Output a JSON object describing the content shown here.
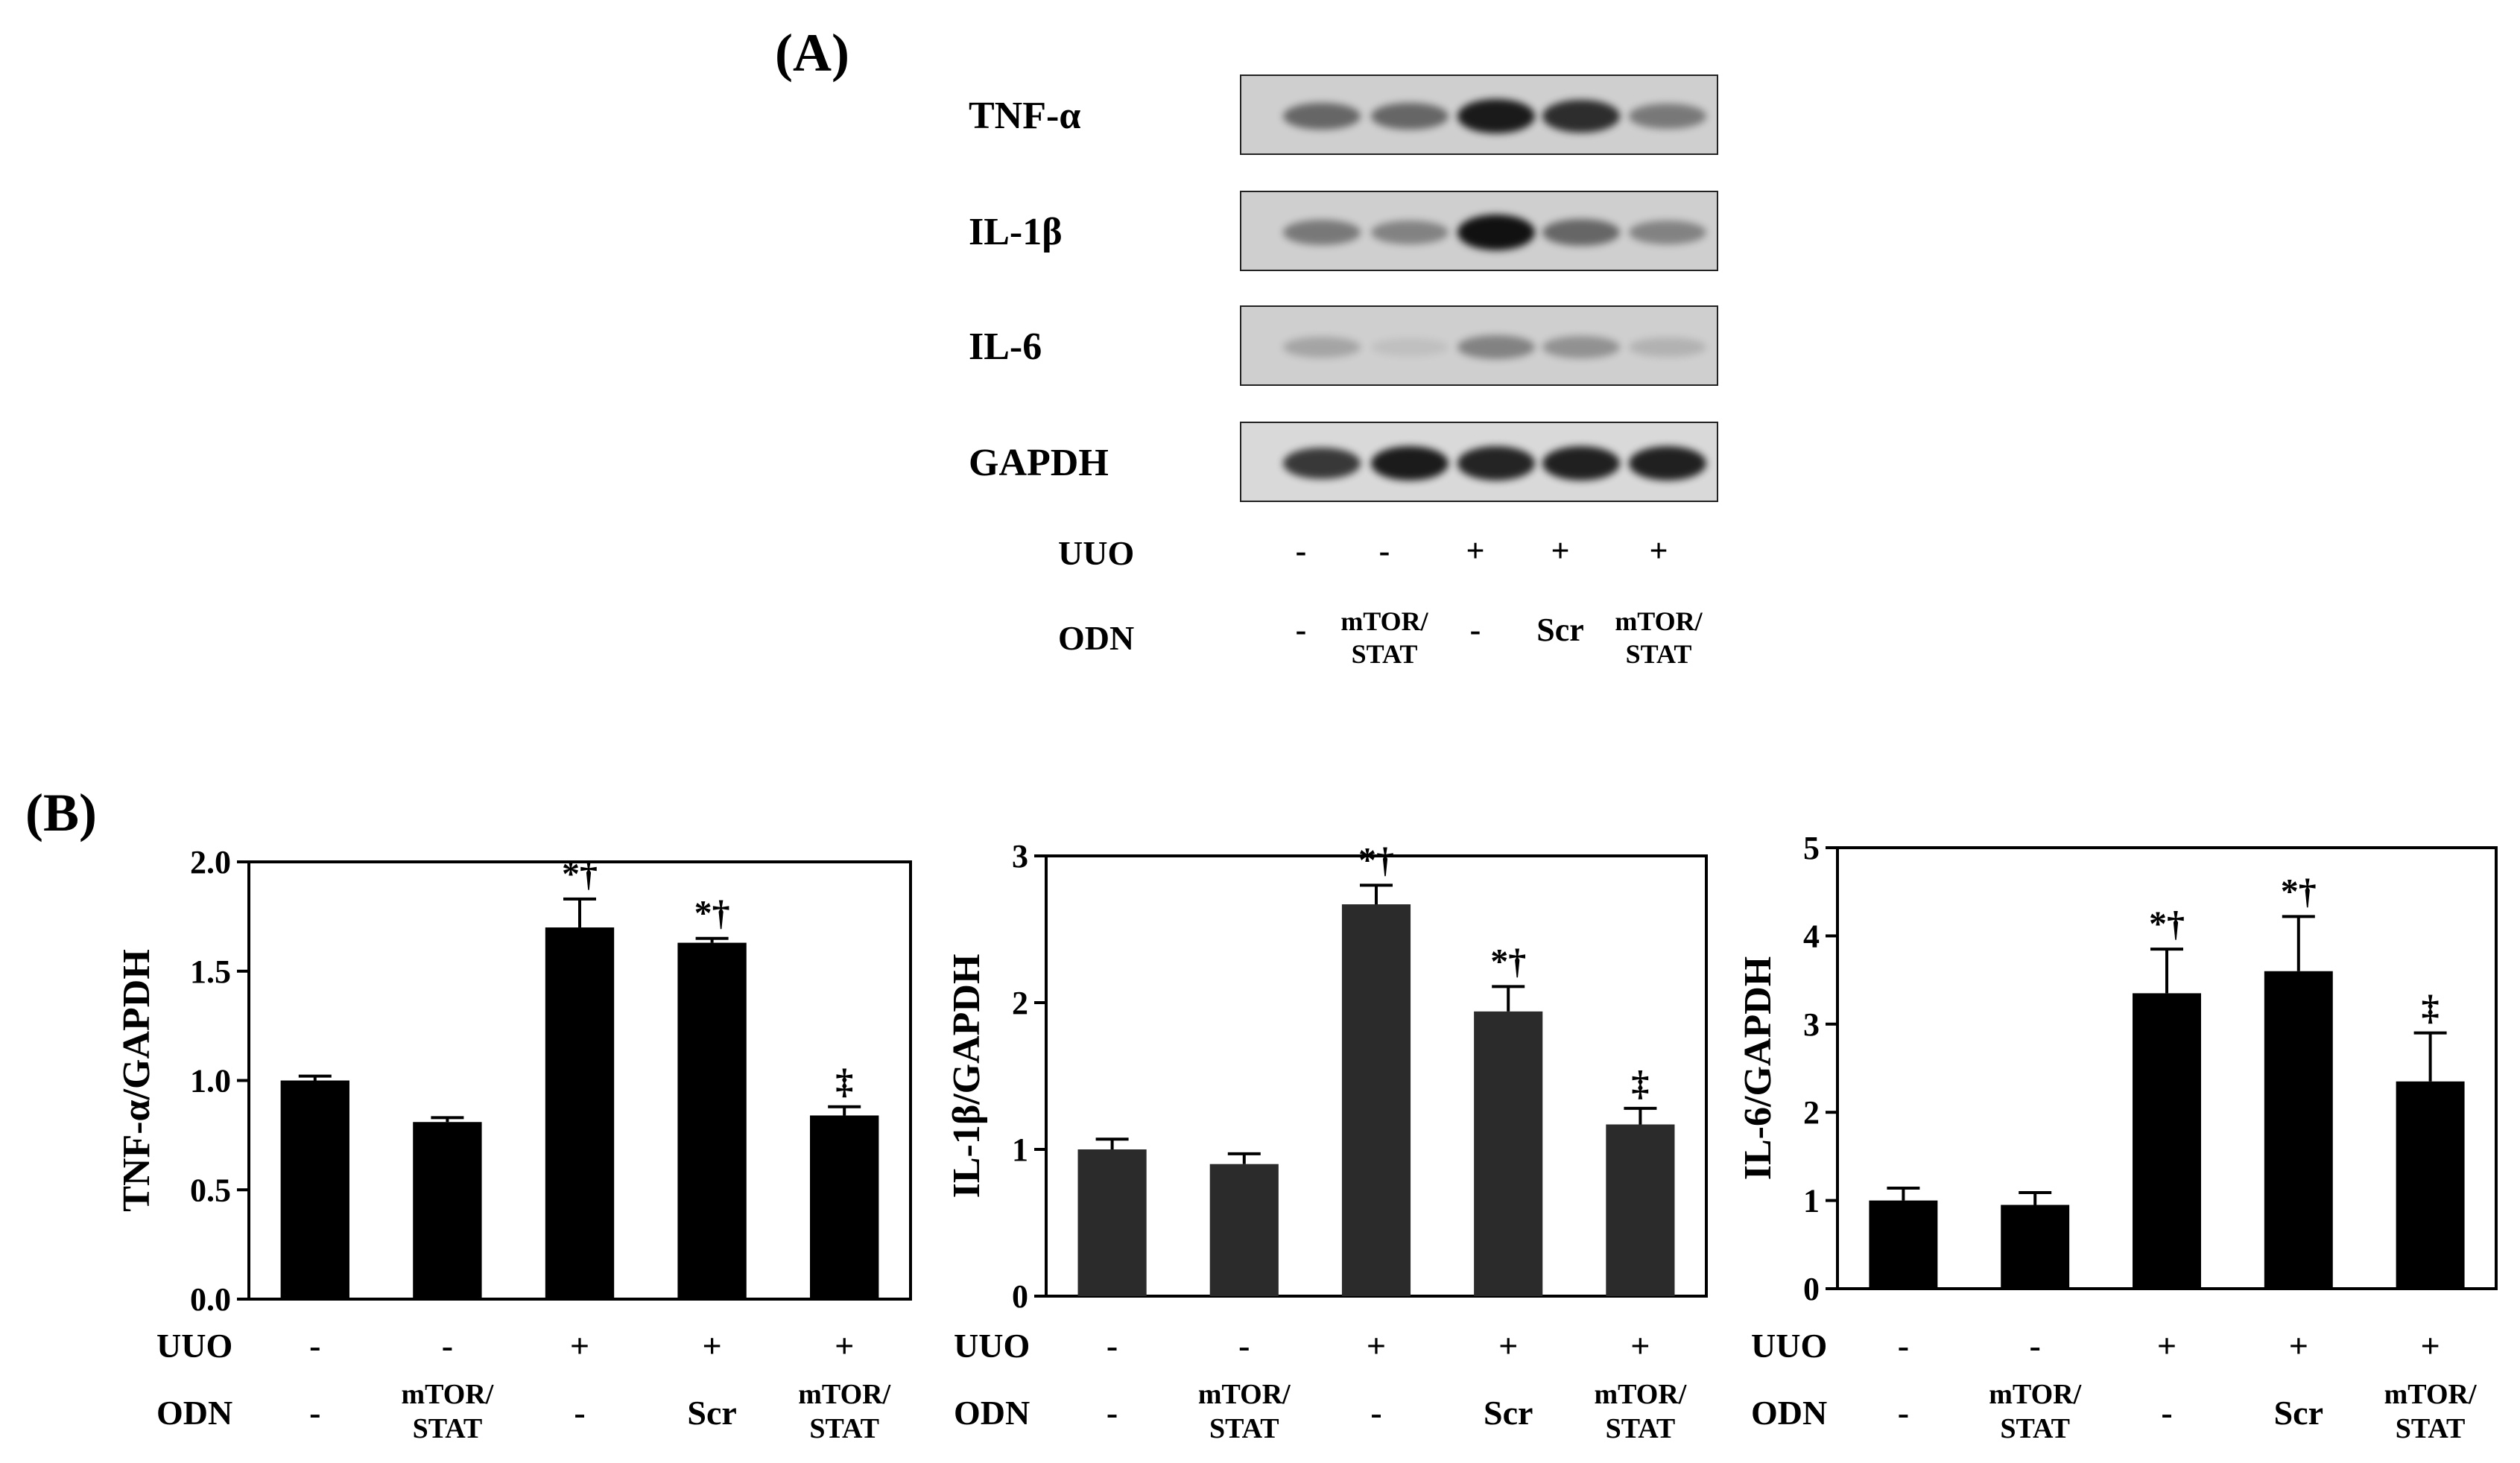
{
  "panel_a": {
    "label": "(A)",
    "blots": [
      {
        "name": "TNF-α",
        "intensity": [
          0.55,
          0.55,
          0.95,
          0.85,
          0.45
        ]
      },
      {
        "name": "IL-1β",
        "intensity": [
          0.45,
          0.4,
          1.0,
          0.55,
          0.4
        ]
      },
      {
        "name": "IL-6",
        "intensity": [
          0.22,
          0.08,
          0.4,
          0.32,
          0.15
        ]
      },
      {
        "name": "GAPDH",
        "intensity": [
          0.8,
          0.95,
          0.9,
          0.92,
          0.92
        ]
      }
    ],
    "band_color": "#111111",
    "uuo_label": "UUO",
    "odn_label": "ODN",
    "uuo": [
      "-",
      "-",
      "+",
      "+",
      "+"
    ],
    "odn": [
      [
        "-"
      ],
      [
        "mTOR/",
        "STAT"
      ],
      [
        "-"
      ],
      [
        "Scr"
      ],
      [
        "mTOR/",
        "STAT"
      ]
    ]
  },
  "panel_b_label": "(B)",
  "chart_data": [
    {
      "type": "bar",
      "ylabel": "TNF-α/GAPDH",
      "ylim": [
        0,
        2.0
      ],
      "yticks": [
        "0.0",
        "0.5",
        "1.0",
        "1.5",
        "2.0"
      ],
      "categories": [
        "UUO -/ODN -",
        "UUO -/ODN mTOR/STAT",
        "UUO +/ODN -",
        "UUO +/ODN Scr",
        "UUO +/ODN mTOR/STAT"
      ],
      "values": [
        1.0,
        0.81,
        1.7,
        1.63,
        0.84
      ],
      "errors": [
        0.02,
        0.02,
        0.13,
        0.02,
        0.04
      ],
      "annotations": [
        "",
        "",
        "*†",
        "*†",
        "‡"
      ],
      "bar_color": "#000000",
      "uuo_label": "UUO",
      "odn_label": "ODN",
      "uuo": [
        "-",
        "-",
        "+",
        "+",
        "+"
      ],
      "odn": [
        [
          "-"
        ],
        [
          "mTOR/",
          "STAT"
        ],
        [
          "-"
        ],
        [
          "Scr"
        ],
        [
          "mTOR/",
          "STAT"
        ]
      ]
    },
    {
      "type": "bar",
      "ylabel": "IL-1β/GAPDH",
      "ylim": [
        0,
        3
      ],
      "yticks": [
        "0",
        "1",
        "2",
        "3"
      ],
      "categories": [
        "UUO -/ODN -",
        "UUO -/ODN mTOR/STAT",
        "UUO +/ODN -",
        "UUO +/ODN Scr",
        "UUO +/ODN mTOR/STAT"
      ],
      "values": [
        1.0,
        0.9,
        2.67,
        1.94,
        1.17
      ],
      "errors": [
        0.07,
        0.07,
        0.13,
        0.17,
        0.11
      ],
      "annotations": [
        "",
        "",
        "*†",
        "*†",
        "‡"
      ],
      "bar_color": "#2b2b2b",
      "uuo_label": "UUO",
      "odn_label": "ODN",
      "uuo": [
        "-",
        "-",
        "+",
        "+",
        "+"
      ],
      "odn": [
        [
          "-"
        ],
        [
          "mTOR/",
          "STAT"
        ],
        [
          "-"
        ],
        [
          "Scr"
        ],
        [
          "mTOR/",
          "STAT"
        ]
      ]
    },
    {
      "type": "bar",
      "ylabel": "IL-6/GAPDH",
      "ylim": [
        0,
        5
      ],
      "yticks": [
        "0",
        "1",
        "2",
        "3",
        "4",
        "5"
      ],
      "categories": [
        "UUO -/ODN -",
        "UUO -/ODN mTOR/STAT",
        "UUO +/ODN -",
        "UUO +/ODN Scr",
        "UUO +/ODN mTOR/STAT"
      ],
      "values": [
        1.0,
        0.95,
        3.35,
        3.6,
        2.35
      ],
      "errors": [
        0.14,
        0.14,
        0.5,
        0.62,
        0.55
      ],
      "annotations": [
        "",
        "",
        "*†",
        "*†",
        "‡"
      ],
      "bar_color": "#000000",
      "uuo_label": "UUO",
      "odn_label": "ODN",
      "uuo": [
        "-",
        "-",
        "+",
        "+",
        "+"
      ],
      "odn": [
        [
          "-"
        ],
        [
          "mTOR/",
          "STAT"
        ],
        [
          "-"
        ],
        [
          "Scr"
        ],
        [
          "mTOR/",
          "STAT"
        ]
      ]
    }
  ]
}
